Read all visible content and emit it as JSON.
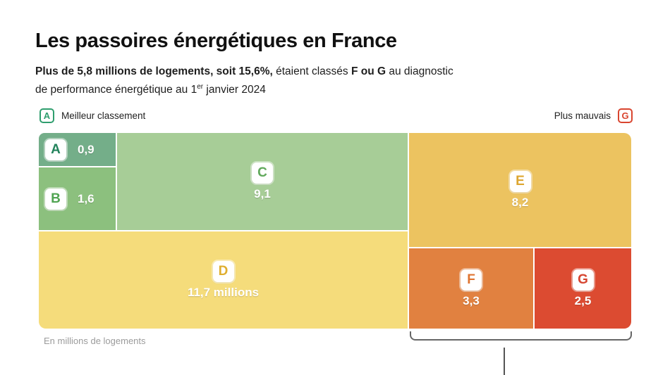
{
  "header": {
    "title": "Les passoires énergétiques en France",
    "subtitle": {
      "line1": {
        "seg_bold1": "Plus de 5,8 millions de logements, soit 15,6%,",
        "seg2": " étaient classés ",
        "seg_bold2": "F ou G",
        "seg3": " au diagnostic"
      },
      "line2": {
        "seg1": "de performance énergétique au 1",
        "sup": "er",
        "seg2": " janvier 2024"
      }
    }
  },
  "legend": {
    "best": {
      "badge": "A",
      "label": "Meilleur classement",
      "color": "#2f9e6e"
    },
    "worst": {
      "badge": "G",
      "label": "Plus mauvais",
      "color": "#d9452f"
    }
  },
  "blocks": [
    {
      "letter": "A",
      "value": 0.9,
      "value_label": "0,9",
      "color": "#74ae89"
    },
    {
      "letter": "B",
      "value": 1.6,
      "value_label": "1,6",
      "color": "#8cc07e"
    },
    {
      "letter": "C",
      "value": 9.1,
      "value_label": "9,1",
      "color": "#a7cd97"
    },
    {
      "letter": "D",
      "value": 11.7,
      "value_label": "11,7 millions",
      "color": "#f5dc7b"
    },
    {
      "letter": "E",
      "value": 8.2,
      "value_label": "8,2",
      "color": "#ecc360"
    },
    {
      "letter": "F",
      "value": 3.3,
      "value_label": "3,3",
      "color": "#e18140"
    },
    {
      "letter": "G",
      "value": 2.5,
      "value_label": "2,5",
      "color": "#dc4b31"
    }
  ],
  "footnote": "En millions de logements",
  "chart_data": {
    "type": "treemap",
    "title": "Les passoires énergétiques en France",
    "categories": [
      "A",
      "B",
      "C",
      "D",
      "E",
      "F",
      "G"
    ],
    "values": [
      0.9,
      1.6,
      9.1,
      11.7,
      8.2,
      3.3,
      2.5
    ],
    "value_labels": [
      "0,9",
      "1,6",
      "9,1",
      "11,7 millions",
      "8,2",
      "3,3",
      "2,5"
    ],
    "unit": "millions de logements",
    "colors": [
      "#74ae89",
      "#8cc07e",
      "#a7cd97",
      "#f5dc7b",
      "#ecc360",
      "#e18140",
      "#dc4b31"
    ],
    "legend": {
      "best": "Meilleur classement",
      "worst": "Plus mauvais"
    },
    "bracket_groups": [
      "F",
      "G"
    ],
    "highlight_total": "5,8 millions (15,6%) classés F ou G au 1er janvier 2024"
  }
}
